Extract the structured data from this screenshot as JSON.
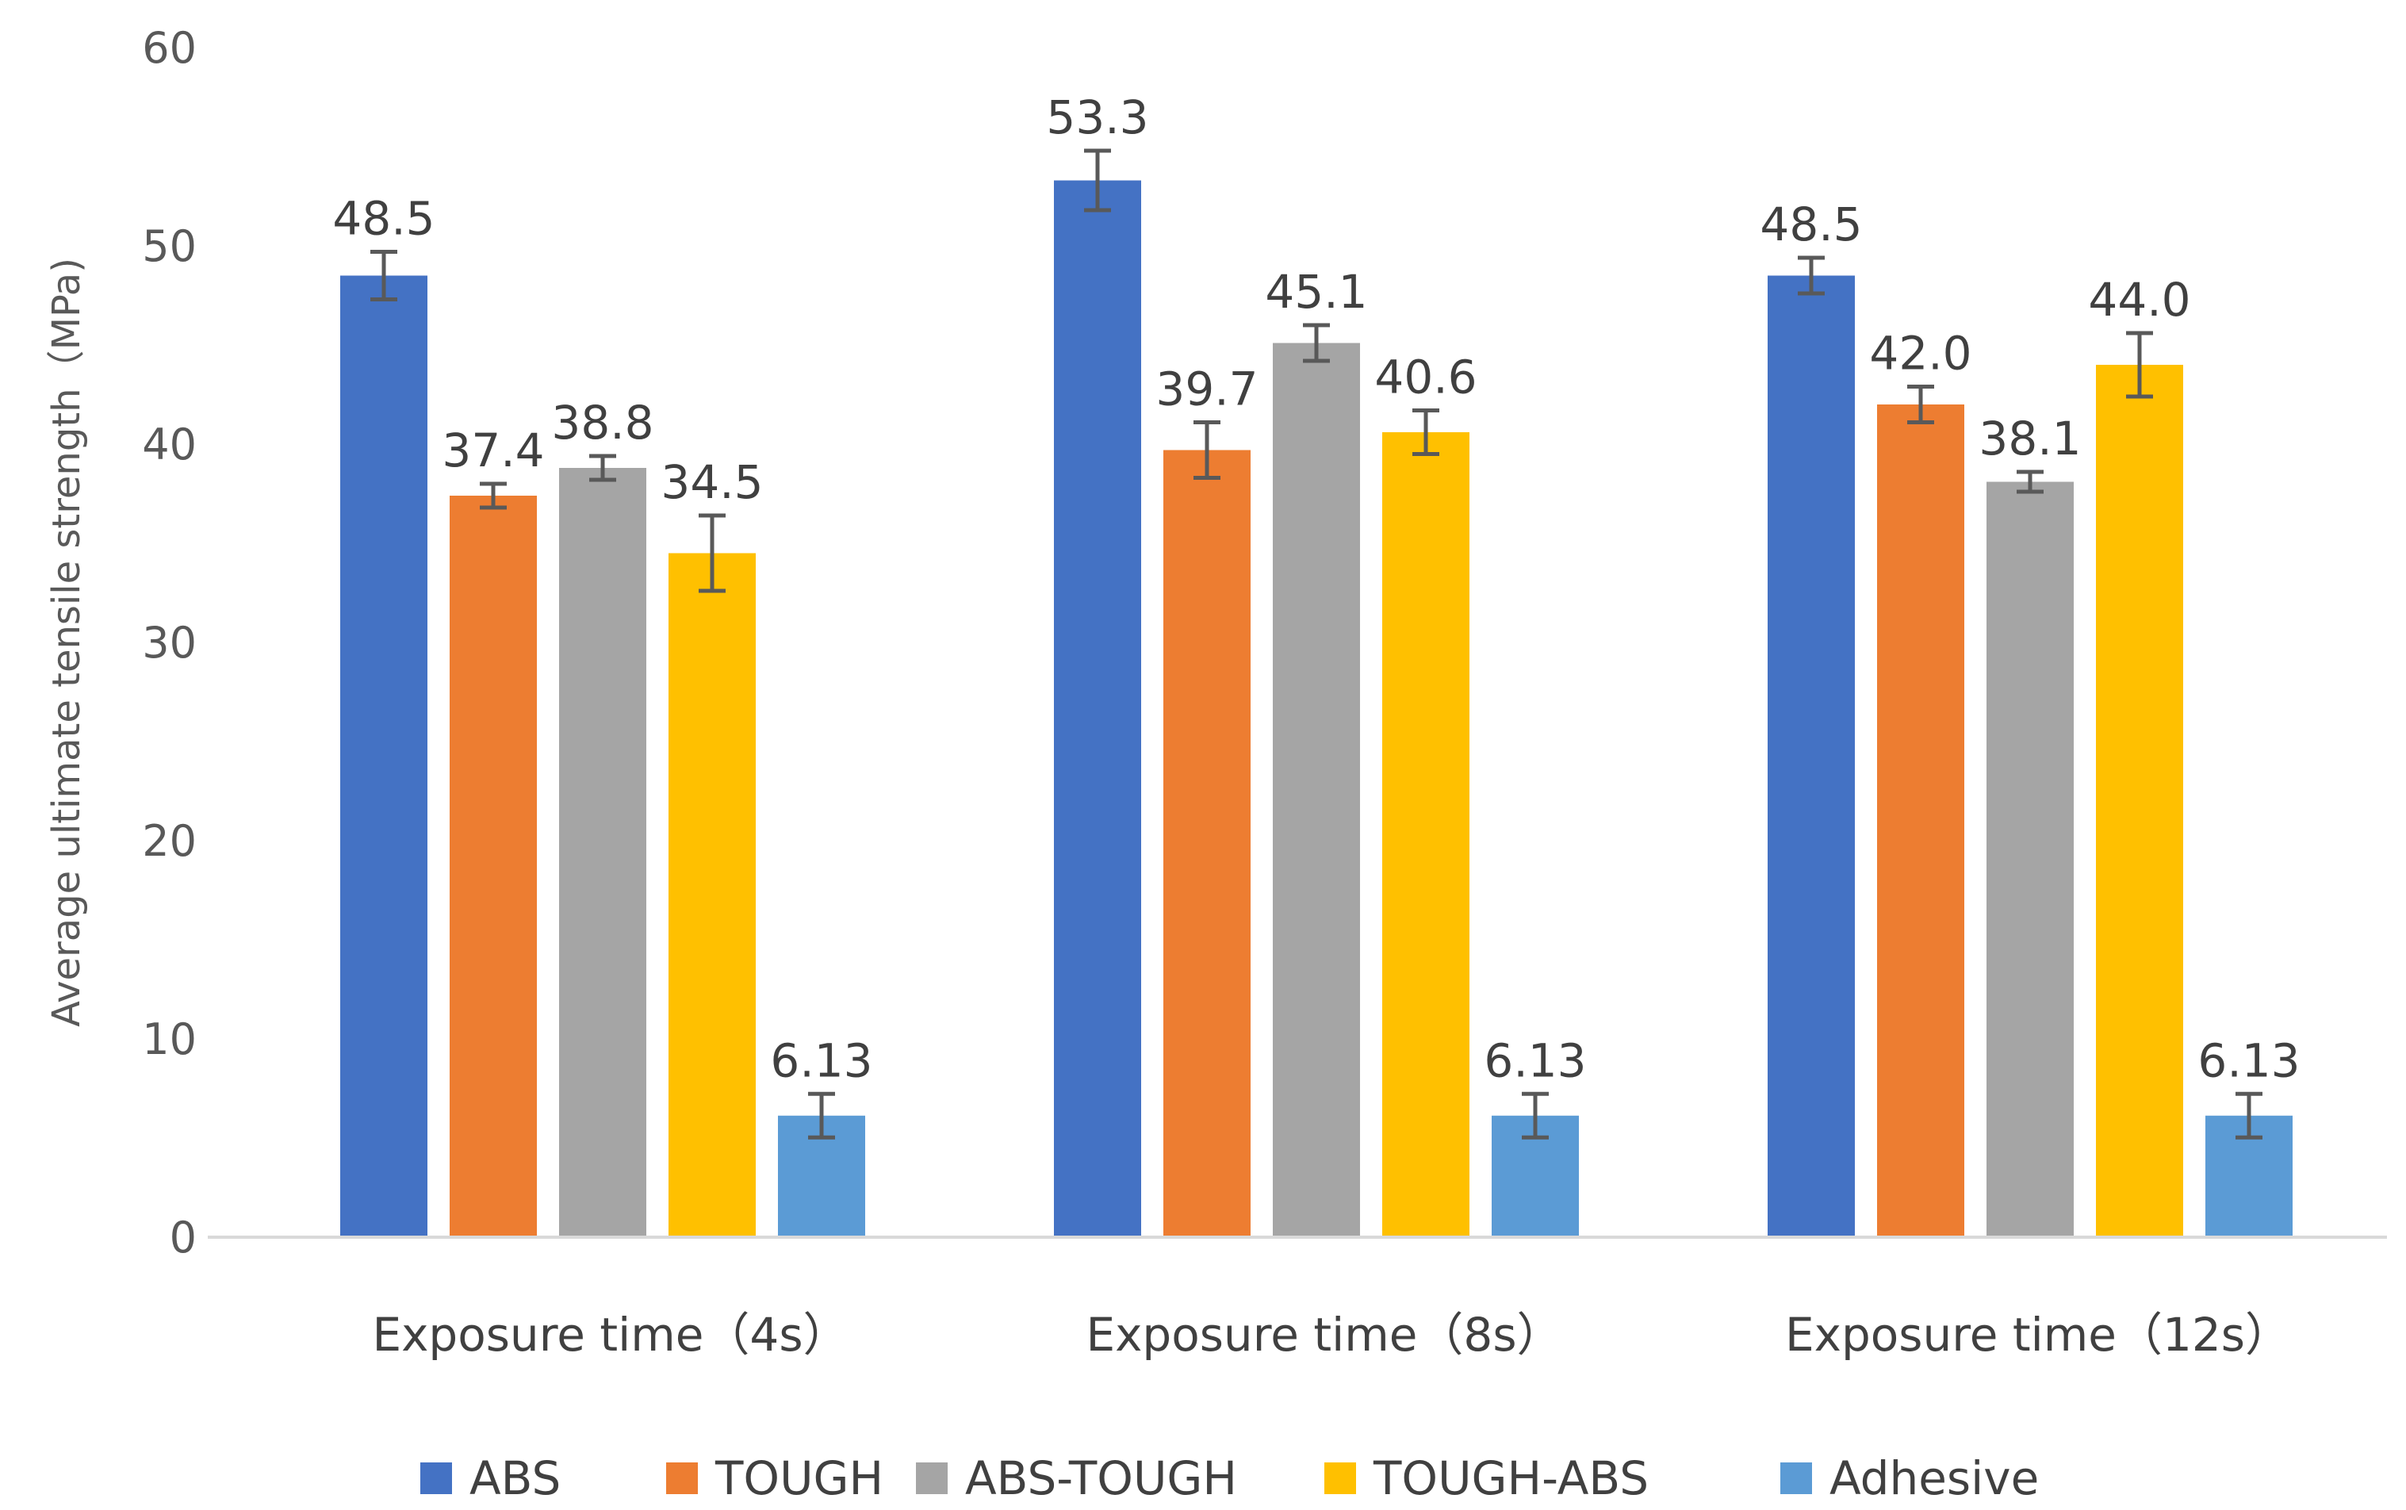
{
  "chart_data": {
    "type": "bar",
    "title": "",
    "xlabel": "",
    "ylabel": "Average ultimate tensile strength（MPa)",
    "ylim": [
      0,
      60
    ],
    "yticks": [
      0,
      10,
      20,
      30,
      40,
      50,
      60
    ],
    "grid": false,
    "legend_position": "bottom",
    "categories": [
      "Exposure time（4s）",
      "Exposure time（8s）",
      "Exposure time（12s）"
    ],
    "series": [
      {
        "name": "ABS",
        "color": "#4472C4",
        "values": [
          48.5,
          53.3,
          48.5
        ],
        "labels": [
          "48.5",
          "53.3",
          "48.5"
        ],
        "errors": [
          1.2,
          1.5,
          0.9
        ]
      },
      {
        "name": "TOUGH",
        "color": "#ED7D31",
        "values": [
          37.4,
          39.7,
          42.0
        ],
        "labels": [
          "37.4",
          "39.7",
          "42.0"
        ],
        "errors": [
          0.6,
          1.4,
          0.9
        ]
      },
      {
        "name": "ABS-TOUGH",
        "color": "#A5A5A5",
        "values": [
          38.8,
          45.1,
          38.1
        ],
        "labels": [
          "38.8",
          "45.1",
          "38.1"
        ],
        "errors": [
          0.6,
          0.9,
          0.5
        ]
      },
      {
        "name": "TOUGH-ABS",
        "color": "#FFC000",
        "values": [
          34.5,
          40.6,
          44.0
        ],
        "labels": [
          "34.5",
          "40.6",
          "44.0"
        ],
        "errors": [
          1.9,
          1.1,
          1.6
        ]
      },
      {
        "name": "Adhesive",
        "color": "#5B9BD5",
        "values": [
          6.13,
          6.13,
          6.13
        ],
        "labels": [
          "6.13",
          "6.13",
          "6.13"
        ],
        "errors": [
          1.1,
          1.1,
          1.1
        ]
      }
    ],
    "axis_color": "#D9D9D9",
    "error_bar_color": "#595959"
  }
}
